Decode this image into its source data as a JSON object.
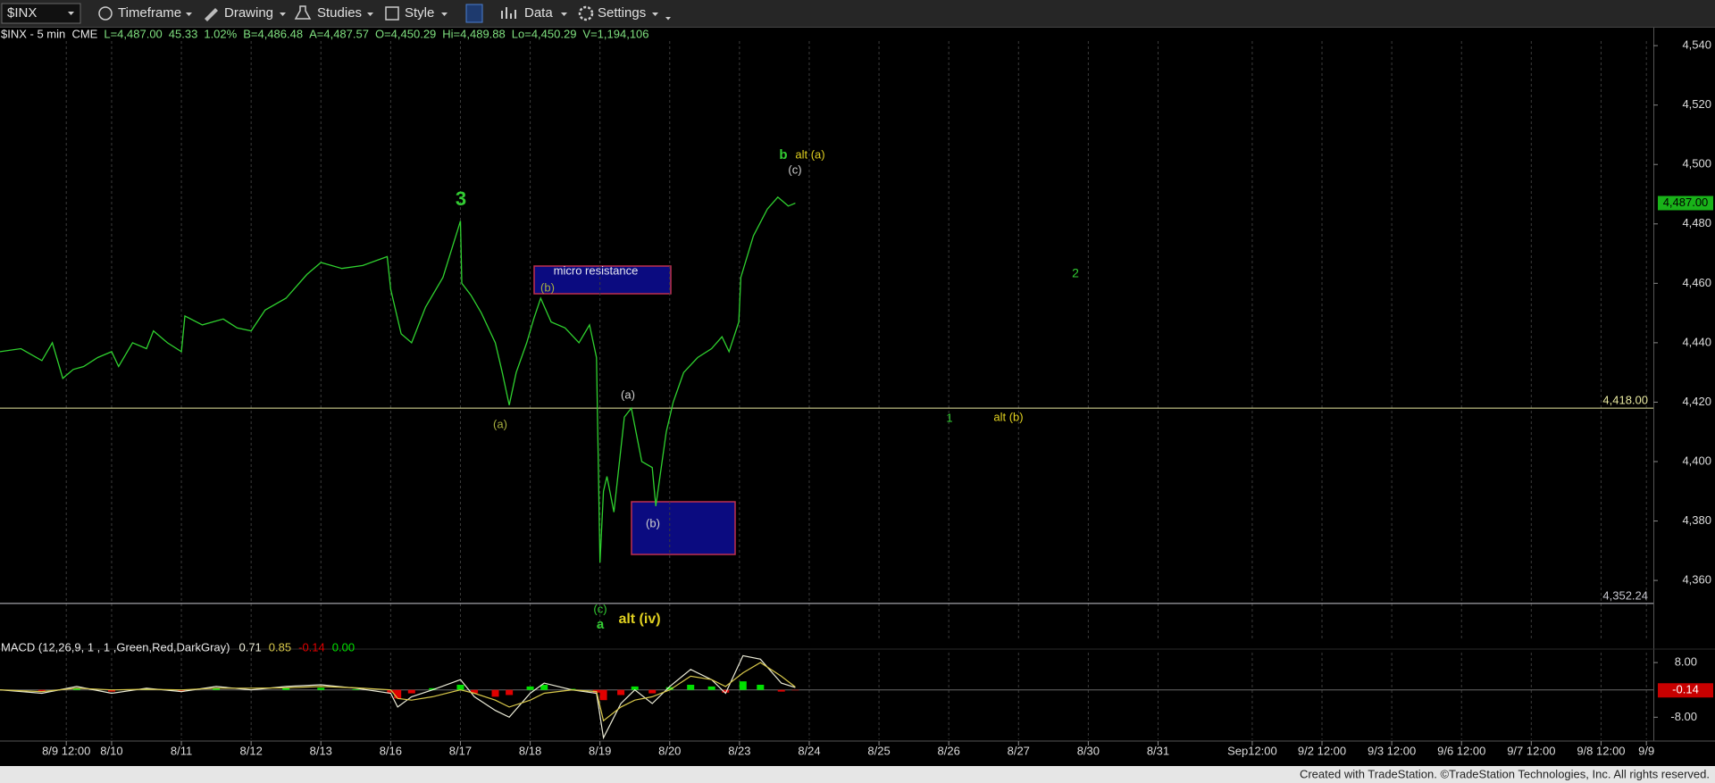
{
  "toolbar": {
    "symbol": "$INX",
    "items": [
      "Timeframe",
      "Drawing",
      "Studies",
      "Style",
      "Data",
      "Settings"
    ]
  },
  "info": [
    "$INX - 5 min  CME",
    "L=4,487.00",
    "45.33",
    "1.02%",
    "B=4,486.48",
    "A=4,487.57",
    "O=4,450.29",
    "Hi=4,489.88",
    "Lo=4,450.29",
    "V=1,194,106"
  ],
  "chart_data": [
    {
      "type": "line",
      "color": "#2fd12f",
      "x": [
        -0.6,
        -0.3,
        0,
        0.15,
        0.3,
        0.45,
        0.6,
        0.8,
        1,
        1.1,
        1.3,
        1.5,
        1.6,
        1.8,
        2,
        2.05,
        2.3,
        2.6,
        2.8,
        3,
        3.2,
        3.5,
        3.8,
        4,
        4.3,
        4.6,
        4.95,
        5,
        5.15,
        5.3,
        5.5,
        5.75,
        6,
        6.02,
        6.15,
        6.3,
        6.5,
        6.6,
        6.7,
        6.8,
        6.95,
        7.05,
        7.15,
        7.3,
        7.5,
        7.7,
        7.85,
        7.95,
        8,
        8.05,
        8.1,
        8.2,
        8.35,
        8.45,
        8.6,
        8.75,
        8.8,
        8.95,
        9.05,
        9.2,
        9.4,
        9.6,
        9.75,
        9.85,
        9.99,
        10.02,
        10.2,
        10.4,
        10.55,
        10.7,
        10.8
      ],
      "values": [
        4437,
        4438,
        4434,
        4440,
        4428,
        4431,
        4432,
        4435,
        4437,
        4432,
        4440,
        4438,
        4444,
        4440,
        4437,
        4449,
        4446,
        4448,
        4445,
        4444,
        4451,
        4455,
        4463,
        4467,
        4465,
        4466,
        4469,
        4458,
        4443,
        4440,
        4452,
        4462,
        4481,
        4460,
        4456,
        4450,
        4440,
        4430,
        4419,
        4430,
        4440,
        4448,
        4455,
        4447,
        4445,
        4440,
        4446,
        4435,
        4366,
        4390,
        4395,
        4383,
        4415,
        4418,
        4400,
        4398,
        4385,
        4410,
        4420,
        4430,
        4435,
        4438,
        4442,
        4437,
        4447,
        4462,
        4476,
        4485,
        4489,
        4486,
        4487
      ],
      "last": {
        "value": 4487,
        "label": "4,487.00"
      },
      "xlim": [
        -0.6,
        23.1
      ],
      "xticks": [
        {
          "value": 0.35,
          "label": "8/9 12:00"
        },
        {
          "value": 1,
          "label": "8/10"
        },
        {
          "value": 2,
          "label": "8/11"
        },
        {
          "value": 3,
          "label": "8/12"
        },
        {
          "value": 4,
          "label": "8/13"
        },
        {
          "value": 5,
          "label": "8/16"
        },
        {
          "value": 6,
          "label": "8/17"
        },
        {
          "value": 7,
          "label": "8/18"
        },
        {
          "value": 8,
          "label": "8/19"
        },
        {
          "value": 9,
          "label": "8/20"
        },
        {
          "value": 10,
          "label": "8/23"
        },
        {
          "value": 11,
          "label": "8/24"
        },
        {
          "value": 12,
          "label": "8/25"
        },
        {
          "value": 13,
          "label": "8/26"
        },
        {
          "value": 14,
          "label": "8/27"
        },
        {
          "value": 15,
          "label": "8/30"
        },
        {
          "value": 16,
          "label": "8/31"
        },
        {
          "value": 17.35,
          "label": "Sep12:00"
        },
        {
          "value": 18.35,
          "label": "9/2 12:00"
        },
        {
          "value": 19.35,
          "label": "9/3 12:00"
        },
        {
          "value": 20.35,
          "label": "9/6 12:00"
        },
        {
          "value": 21.35,
          "label": "9/7 12:00"
        },
        {
          "value": 22.35,
          "label": "9/8 12:00"
        },
        {
          "value": 23,
          "label": "9/9"
        }
      ],
      "ylim": [
        4342,
        4548
      ],
      "yticks": [
        {
          "value": 4360,
          "label": "4,360"
        },
        {
          "value": 4380,
          "label": "4,380"
        },
        {
          "value": 4400,
          "label": "4,400"
        },
        {
          "value": 4420,
          "label": "4,420"
        },
        {
          "value": 4440,
          "label": "4,440"
        },
        {
          "value": 4460,
          "label": "4,460"
        },
        {
          "value": 4480,
          "label": "4,480"
        },
        {
          "value": 4500,
          "label": "4,500"
        },
        {
          "value": 4520,
          "label": "4,520"
        },
        {
          "value": 4540,
          "label": "4,540"
        }
      ],
      "hlines": [
        {
          "value": 4418,
          "label": "4,418.00",
          "color": "#e8e8a0"
        },
        {
          "value": 4352.24,
          "label": "4,352.24",
          "color": "#c8c8d0"
        }
      ],
      "annotations": [
        "3",
        "(a)",
        "(b)",
        "micro resistance",
        "(a)",
        "(b)",
        "(c)",
        "a",
        "alt (iv)",
        "b",
        "alt (a)",
        "(c)",
        "2",
        "1",
        "alt (b)"
      ]
    },
    {
      "type": "line",
      "title": "MACD (12,26,9, 1 , 1 ,Green,Red,DarkGray)",
      "x": [
        -0.6,
        0,
        0.5,
        1,
        1.5,
        2,
        2.5,
        3,
        3.5,
        4,
        4.5,
        5,
        5.1,
        5.3,
        5.6,
        6,
        6.2,
        6.5,
        6.7,
        7,
        7.2,
        7.6,
        7.95,
        8.05,
        8.3,
        8.5,
        8.75,
        9,
        9.3,
        9.6,
        9.8,
        10.05,
        10.3,
        10.6,
        10.8
      ],
      "series": [
        {
          "color": "#ececd8",
          "values": [
            0,
            -1,
            1,
            -1,
            0.5,
            -0.5,
            1,
            0,
            1,
            1.5,
            0.5,
            -1,
            -5,
            -2,
            0,
            3,
            -2,
            -6,
            -8,
            -1,
            2,
            0,
            -1,
            -14,
            -4,
            0,
            -4,
            1,
            6,
            3,
            -1,
            10,
            9,
            2,
            0.71
          ]
        },
        {
          "color": "#d8c84a",
          "values": [
            0,
            -0.5,
            0.5,
            0,
            0.2,
            0,
            0.5,
            0.5,
            0.6,
            1,
            0.6,
            0,
            -2.5,
            -3,
            -2,
            0,
            -1,
            -3,
            -5,
            -3,
            -1,
            0,
            -0.5,
            -9,
            -5,
            -3,
            -2,
            0,
            4,
            3,
            1,
            5,
            8,
            4,
            0.85
          ]
        },
        {
          "type": "bar",
          "pos_color": "#00e000",
          "neg_color": "#e00000",
          "values": [
            0,
            -0.5,
            0.5,
            -0.5,
            0.3,
            -0.3,
            0.5,
            0,
            0.5,
            0.6,
            0.2,
            -0.8,
            -2.5,
            -1,
            0.5,
            1.5,
            -1,
            -2,
            -1.5,
            1,
            1.5,
            0.3,
            -0.8,
            -3,
            -1.5,
            1,
            -1,
            0.8,
            1.5,
            1,
            -0.8,
            2.5,
            1.5,
            -0.5,
            -0.14
          ]
        }
      ],
      "zero_line": {
        "value": 0,
        "label": "0.00",
        "color": "#6a6a6a"
      },
      "xlim": [
        -0.6,
        23.1
      ],
      "ylim": [
        -13.4,
        10.9
      ],
      "yticks": [
        {
          "value": 8,
          "label": "8.00"
        },
        {
          "value": -8,
          "label": "-8.00"
        }
      ]
    }
  ],
  "footer": "Created with TradeStation. ©TradeStation Technologies, Inc. All rights reserved."
}
